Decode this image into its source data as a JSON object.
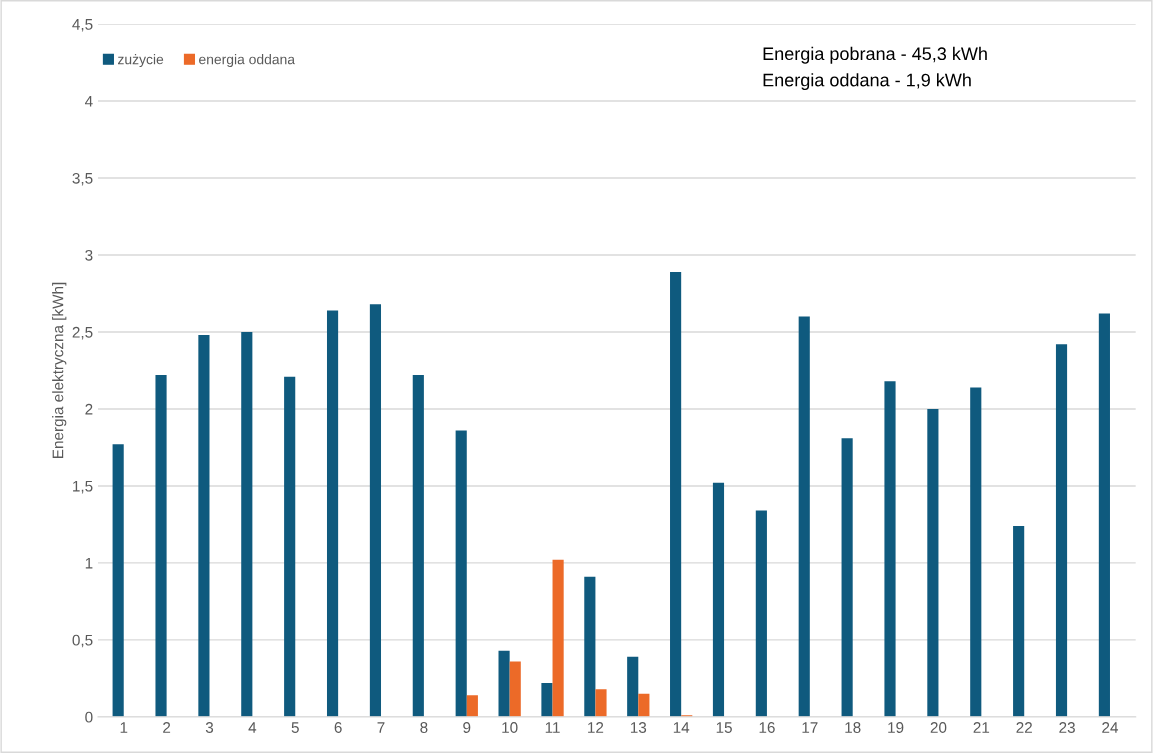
{
  "chart_data": {
    "type": "bar",
    "ylabel": "Energia elektryczna [kWh]",
    "categories": [
      "1",
      "2",
      "3",
      "4",
      "5",
      "6",
      "7",
      "8",
      "9",
      "10",
      "11",
      "12",
      "13",
      "14",
      "15",
      "16",
      "17",
      "18",
      "19",
      "20",
      "21",
      "22",
      "23",
      "24"
    ],
    "series": [
      {
        "name": "zużycie",
        "color": "#0f5a7e",
        "values": [
          1.77,
          2.22,
          2.48,
          2.5,
          2.21,
          2.64,
          2.68,
          2.22,
          1.86,
          0.43,
          0.22,
          0.91,
          0.39,
          2.89,
          1.52,
          1.34,
          2.6,
          1.81,
          2.18,
          2.0,
          2.14,
          1.24,
          2.42,
          2.62
        ]
      },
      {
        "name": "energia oddana",
        "color": "#ec6a28",
        "values": [
          null,
          null,
          null,
          null,
          null,
          null,
          null,
          null,
          0.14,
          0.36,
          1.02,
          0.18,
          0.15,
          0.01,
          null,
          null,
          null,
          null,
          null,
          null,
          null,
          null,
          null,
          null
        ]
      }
    ],
    "ylim": [
      0,
      4.5
    ],
    "yticks": [
      0,
      {
        "value": 0.5,
        "label": "0,5"
      },
      1,
      {
        "value": 1.5,
        "label": "1,5"
      },
      2,
      {
        "value": 2.5,
        "label": "2,5"
      },
      3,
      {
        "value": 3.5,
        "label": "3,5"
      },
      4,
      {
        "value": 4.5,
        "label": "4,5"
      }
    ],
    "grid": "y",
    "legend": "top left",
    "annotations": [
      "Energia pobrana - 45,3 kWh",
      "Energia oddana - 1,9 kWh"
    ]
  }
}
